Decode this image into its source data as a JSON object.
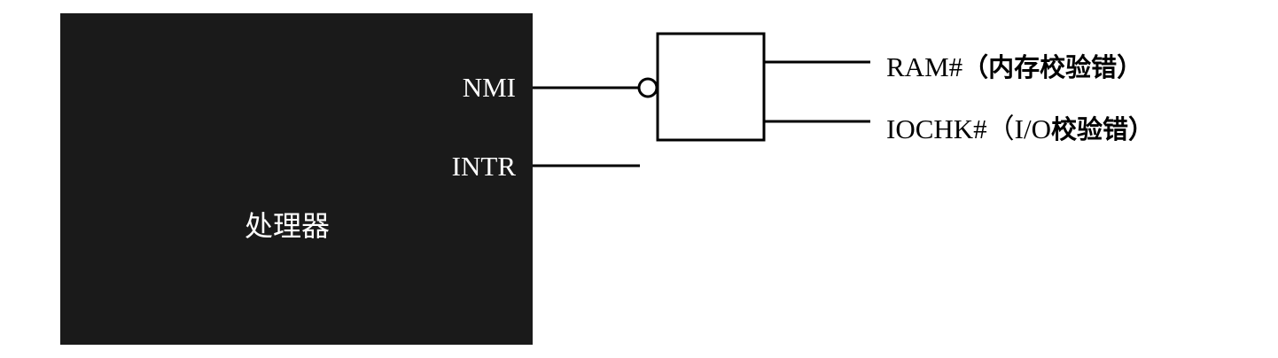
{
  "processor": {
    "label": "处理器",
    "pins": {
      "nmi": "NMI",
      "intr": "INTR"
    },
    "fill_color": "#1a1a1a",
    "text_color": "#ffffff"
  },
  "gate": {
    "type": "nand-inverted-output-into-nmi"
  },
  "signals": {
    "ram": {
      "name": "RAM#",
      "description": "（内存校验错）"
    },
    "iochk": {
      "name": "IOCHK#",
      "description_latin": "（I/O",
      "description_cn": "校验错）"
    }
  },
  "colors": {
    "line": "#000000",
    "background": "#ffffff"
  }
}
